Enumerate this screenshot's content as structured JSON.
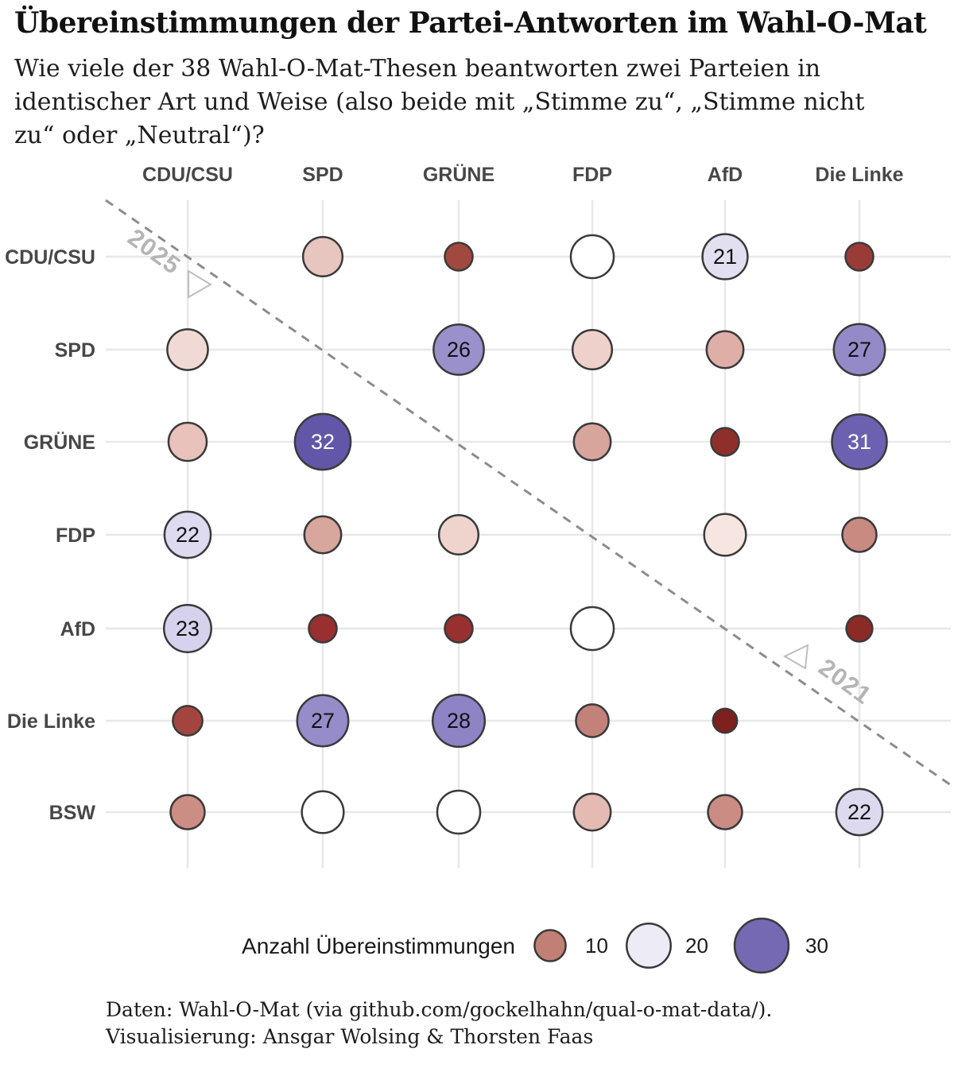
{
  "title": "Übereinstimmungen der Partei-Antworten im Wahl-O-Mat",
  "subtitle": {
    "lines": [
      "Wie viele der 38 Wahl-O-Mat-Thesen beantworten zwei Parteien in",
      "identischer Art und Weise (also beide mit „Stimme zu“, „Stimme nicht",
      "zu“ oder „Neutral“)?"
    ]
  },
  "caption": {
    "line1": "Daten: Wahl-O-Mat (via github.com/gockelhahn/qual-o-mat-data/).",
    "line2": "Visualisierung: Ansgar Wolsing & Thorsten Faas"
  },
  "annotations": {
    "upper_triangle_year": "2025",
    "lower_triangle_year": "2021"
  },
  "legend": {
    "label": "Anzahl Übereinstimmungen",
    "sizes": [
      {
        "value": "10",
        "color": "#c17f75"
      },
      {
        "value": "20",
        "color": "#edebf6"
      },
      {
        "value": "30",
        "color": "#7569b3"
      }
    ]
  },
  "colors": {
    "bubble_stroke": "#3a3a3a",
    "grid": "#e8e8e8",
    "diagonal": "#8c8c8c",
    "annotation": "#b5b5b5",
    "axis_label": "#474747",
    "legend_text": "#1a1a1a"
  },
  "chart_data": {
    "type": "scatter",
    "subtype": "bubble-matrix",
    "title": "Übereinstimmungen der Partei-Antworten im Wahl-O-Mat",
    "total_theses": 38,
    "columns": [
      "CDU/CSU",
      "SPD",
      "GRÜNE",
      "FDP",
      "AfD",
      "Die Linke"
    ],
    "rows": [
      "CDU/CSU",
      "SPD",
      "GRÜNE",
      "FDP",
      "AfD",
      "Die Linke",
      "BSW"
    ],
    "value_encoding": "bubble size and diverging color (dark red = low, white ≈ 19, purple = high); numeric label shown for values > 20",
    "cells": [
      {
        "row": "CDU/CSU",
        "col": "SPD",
        "year": "2025",
        "value": 16,
        "label": "",
        "color": "#e7c6c0",
        "label_color": "#111111"
      },
      {
        "row": "CDU/CSU",
        "col": "GRÜNE",
        "year": "2025",
        "value": 8,
        "label": "",
        "color": "#a1483f",
        "label_color": "#111111"
      },
      {
        "row": "CDU/CSU",
        "col": "FDP",
        "year": "2025",
        "value": 19,
        "label": "",
        "color": "#ffffff",
        "label_color": "#111111"
      },
      {
        "row": "CDU/CSU",
        "col": "AfD",
        "year": "2025",
        "value": 21,
        "label": "21",
        "color": "#e2dff0",
        "label_color": "#111111"
      },
      {
        "row": "CDU/CSU",
        "col": "Die Linke",
        "year": "2025",
        "value": 8,
        "label": "",
        "color": "#9b3b37",
        "label_color": "#111111"
      },
      {
        "row": "SPD",
        "col": "CDU/CSU",
        "year": "2021",
        "value": 17,
        "label": "",
        "color": "#f1dad5",
        "label_color": "#111111"
      },
      {
        "row": "SPD",
        "col": "GRÜNE",
        "year": "2025",
        "value": 26,
        "label": "26",
        "color": "#9a90cb",
        "label_color": "#111111"
      },
      {
        "row": "SPD",
        "col": "FDP",
        "year": "2025",
        "value": 16,
        "label": "",
        "color": "#eed1ca",
        "label_color": "#111111"
      },
      {
        "row": "SPD",
        "col": "AfD",
        "year": "2025",
        "value": 14,
        "label": "",
        "color": "#dfafa7",
        "label_color": "#111111"
      },
      {
        "row": "SPD",
        "col": "Die Linke",
        "year": "2025",
        "value": 27,
        "label": "27",
        "color": "#948ac8",
        "label_color": "#111111"
      },
      {
        "row": "GRÜNE",
        "col": "CDU/CSU",
        "year": "2021",
        "value": 15,
        "label": "",
        "color": "#e8c2bb",
        "label_color": "#111111"
      },
      {
        "row": "GRÜNE",
        "col": "SPD",
        "year": "2021",
        "value": 32,
        "label": "32",
        "color": "#6156a8",
        "label_color": "#ffffff"
      },
      {
        "row": "GRÜNE",
        "col": "FDP",
        "year": "2025",
        "value": 14,
        "label": "",
        "color": "#d8a59c",
        "label_color": "#111111"
      },
      {
        "row": "GRÜNE",
        "col": "AfD",
        "year": "2025",
        "value": 8,
        "label": "",
        "color": "#8f2f2c",
        "label_color": "#111111"
      },
      {
        "row": "GRÜNE",
        "col": "Die Linke",
        "year": "2025",
        "value": 31,
        "label": "31",
        "color": "#6c61b0",
        "label_color": "#ffffff"
      },
      {
        "row": "FDP",
        "col": "CDU/CSU",
        "year": "2021",
        "value": 22,
        "label": "22",
        "color": "#dedbf0",
        "label_color": "#111111"
      },
      {
        "row": "FDP",
        "col": "SPD",
        "year": "2021",
        "value": 14,
        "label": "",
        "color": "#d7a69d",
        "label_color": "#111111"
      },
      {
        "row": "FDP",
        "col": "GRÜNE",
        "year": "2021",
        "value": 16,
        "label": "",
        "color": "#efd4ce",
        "label_color": "#111111"
      },
      {
        "row": "FDP",
        "col": "AfD",
        "year": "2025",
        "value": 18,
        "label": "",
        "color": "#f6e5e0",
        "label_color": "#111111"
      },
      {
        "row": "FDP",
        "col": "Die Linke",
        "year": "2025",
        "value": 12,
        "label": "",
        "color": "#c78b81",
        "label_color": "#111111"
      },
      {
        "row": "AfD",
        "col": "CDU/CSU",
        "year": "2021",
        "value": 23,
        "label": "23",
        "color": "#d6d2ed",
        "label_color": "#111111"
      },
      {
        "row": "AfD",
        "col": "SPD",
        "year": "2021",
        "value": 8,
        "label": "",
        "color": "#97302e",
        "label_color": "#111111"
      },
      {
        "row": "AfD",
        "col": "GRÜNE",
        "year": "2021",
        "value": 8,
        "label": "",
        "color": "#97302e",
        "label_color": "#111111"
      },
      {
        "row": "AfD",
        "col": "FDP",
        "year": "2021",
        "value": 19,
        "label": "",
        "color": "#ffffff",
        "label_color": "#111111"
      },
      {
        "row": "AfD",
        "col": "Die Linke",
        "year": "2025",
        "value": 7,
        "label": "",
        "color": "#8c2a27",
        "label_color": "#111111"
      },
      {
        "row": "Die Linke",
        "col": "CDU/CSU",
        "year": "2021",
        "value": 9,
        "label": "",
        "color": "#a2453f",
        "label_color": "#111111"
      },
      {
        "row": "Die Linke",
        "col": "SPD",
        "year": "2021",
        "value": 27,
        "label": "27",
        "color": "#968cc9",
        "label_color": "#111111"
      },
      {
        "row": "Die Linke",
        "col": "GRÜNE",
        "year": "2021",
        "value": 28,
        "label": "28",
        "color": "#8d83c5",
        "label_color": "#111111"
      },
      {
        "row": "Die Linke",
        "col": "FDP",
        "year": "2021",
        "value": 11,
        "label": "",
        "color": "#c28179",
        "label_color": "#111111"
      },
      {
        "row": "Die Linke",
        "col": "AfD",
        "year": "2021",
        "value": 6,
        "label": "",
        "color": "#7d201e",
        "label_color": "#111111"
      },
      {
        "row": "BSW",
        "col": "CDU/CSU",
        "year": "2025",
        "value": 12,
        "label": "",
        "color": "#cc8d84",
        "label_color": "#111111"
      },
      {
        "row": "BSW",
        "col": "SPD",
        "year": "2025",
        "value": 18,
        "label": "",
        "color": "#ffffff",
        "label_color": "#111111"
      },
      {
        "row": "BSW",
        "col": "GRÜNE",
        "year": "2025",
        "value": 19,
        "label": "",
        "color": "#ffffff",
        "label_color": "#111111"
      },
      {
        "row": "BSW",
        "col": "FDP",
        "year": "2025",
        "value": 14,
        "label": "",
        "color": "#e4bab2",
        "label_color": "#111111"
      },
      {
        "row": "BSW",
        "col": "AfD",
        "year": "2025",
        "value": 12,
        "label": "",
        "color": "#cb8c83",
        "label_color": "#111111"
      },
      {
        "row": "BSW",
        "col": "Die Linke",
        "year": "2025",
        "value": 22,
        "label": "22",
        "color": "#dddaef",
        "label_color": "#111111"
      }
    ]
  }
}
